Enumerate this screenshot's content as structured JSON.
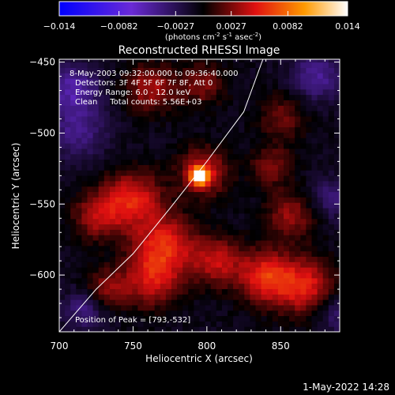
{
  "colorbar": {
    "ticks": [
      "-0.014",
      "-0.0082",
      "-0.0027",
      "0.0027",
      "0.0082",
      "0.014"
    ],
    "tick_values": [
      -0.014,
      -0.0082,
      -0.0027,
      0.0027,
      0.0082,
      0.014
    ],
    "range": [
      -0.014,
      0.014
    ],
    "unit_parts": [
      "(photons cm",
      "-2",
      " s",
      "-1",
      " asec",
      "-2",
      ")"
    ]
  },
  "footer": {
    "timestamp": "1-May-2022 14:28"
  },
  "chart_data": {
    "type": "heatmap",
    "title": "Reconstructed RHESSI Image",
    "xlabel": "Heliocentric X (arcsec)",
    "ylabel": "Heliocentric Y (arcsec)",
    "xlim": [
      700,
      890
    ],
    "ylim": [
      -640,
      -448
    ],
    "xticks": [
      700,
      750,
      800,
      850
    ],
    "yticks": [
      -450,
      -500,
      -550,
      -600
    ],
    "annotations": [
      "8-May-2003 09:32:00.000 to 09:36:40.000",
      "Detectors: 3F 4F 5F 6F 7F 8F, Att 0",
      "Energy Range: 6.0 - 12.0 keV",
      "Clean     Total counts: 5.56E+03"
    ],
    "peak_label": "Position of Peak = [793,-532]",
    "peak": {
      "x": 793,
      "y": -532,
      "value": 0.014
    },
    "colormap": "blue-purple-black-red-orange-yellow-white (diverging)",
    "limb_curve_points": [
      [
        700,
        -640
      ],
      [
        725,
        -610
      ],
      [
        750,
        -585
      ],
      [
        775,
        -553
      ],
      [
        800,
        -520
      ],
      [
        825,
        -485
      ],
      [
        838,
        -448
      ]
    ],
    "features": [
      {
        "x": 793,
        "y": -532,
        "value": 0.014,
        "sigma": 4
      },
      {
        "x": 796,
        "y": -529,
        "value": 0.0055,
        "sigma": 12
      },
      {
        "x": 748,
        "y": -548,
        "value": 0.006,
        "sigma": 14
      },
      {
        "x": 724,
        "y": -560,
        "value": 0.0045,
        "sigma": 12
      },
      {
        "x": 770,
        "y": -580,
        "value": 0.006,
        "sigma": 15
      },
      {
        "x": 760,
        "y": -605,
        "value": 0.005,
        "sigma": 14
      },
      {
        "x": 730,
        "y": -612,
        "value": 0.004,
        "sigma": 10
      },
      {
        "x": 805,
        "y": -592,
        "value": 0.005,
        "sigma": 12
      },
      {
        "x": 838,
        "y": -603,
        "value": 0.0065,
        "sigma": 13
      },
      {
        "x": 865,
        "y": -610,
        "value": 0.006,
        "sigma": 14
      },
      {
        "x": 855,
        "y": -560,
        "value": 0.004,
        "sigma": 12
      },
      {
        "x": 842,
        "y": -525,
        "value": 0.0035,
        "sigma": 10
      },
      {
        "x": 760,
        "y": -470,
        "value": 0.0045,
        "sigma": 12
      },
      {
        "x": 795,
        "y": -467,
        "value": 0.0035,
        "sigma": 11
      },
      {
        "x": 850,
        "y": -490,
        "value": 0.003,
        "sigma": 12
      },
      {
        "x": 708,
        "y": -470,
        "value": -0.0045,
        "sigma": 12
      },
      {
        "x": 710,
        "y": -500,
        "value": -0.0035,
        "sigma": 14
      },
      {
        "x": 872,
        "y": -462,
        "value": -0.004,
        "sigma": 12
      },
      {
        "x": 882,
        "y": -548,
        "value": -0.003,
        "sigma": 10
      },
      {
        "x": 716,
        "y": -626,
        "value": -0.0035,
        "sigma": 10
      },
      {
        "x": 885,
        "y": -628,
        "value": -0.003,
        "sigma": 10
      }
    ]
  }
}
